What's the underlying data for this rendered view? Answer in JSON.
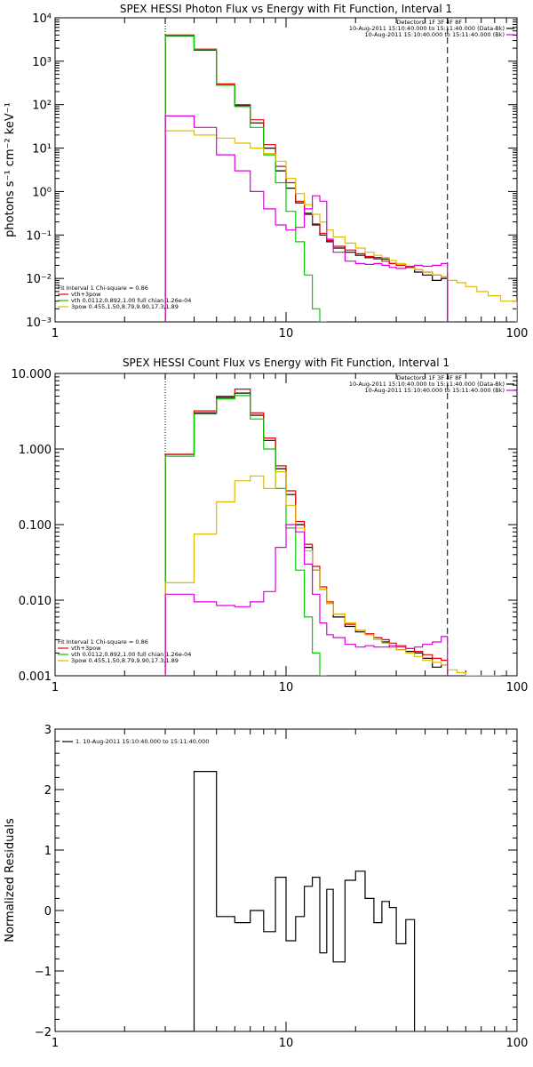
{
  "chart_data": [
    {
      "type": "line",
      "title": "SPEX HESSI Photon Flux vs Energy with Fit Function, Interval 1",
      "ylabel": "photons s⁻¹ cm⁻² keV⁻¹",
      "xlabel": "",
      "xscale": "log",
      "yscale": "log",
      "xlim": [
        1,
        100
      ],
      "ylim": [
        0.001,
        10000
      ],
      "x_ticks": [
        1,
        10,
        100
      ],
      "x_tick_labels": [
        "1",
        "10",
        "100"
      ],
      "y_ticks": [
        0.001,
        0.01,
        0.1,
        1,
        10,
        100,
        1000,
        10000
      ],
      "y_tick_labels": [
        "10⁻³",
        "10⁻²",
        "10⁻¹",
        "10⁰",
        "10¹",
        "10²",
        "10³",
        "10⁴"
      ],
      "vlines": [
        {
          "x": 3.0,
          "style": "dotted"
        },
        {
          "x": 50.0,
          "style": "dashed"
        }
      ],
      "legend_top": [
        "Detectors: 1F 3F 4F 8F",
        "10-Aug-2011 15:10:40.000 to 15:11:40.000 (Data-Bk)",
        "10-Aug-2011 15:10:40.000 to 15:11:40.000 (Bk)"
      ],
      "legend_bottom": [
        "Fit Interval 1   Chi-square = 0.86",
        "vth+3pow",
        "vth 0.0112,0.892,1.00  full chian 1.26e-04",
        "3pow 0.455,1.50,8.79,9.90,17.3,1.89"
      ],
      "bin_edges": [
        3.0,
        4.0,
        5.0,
        6.0,
        7.0,
        8.0,
        9.0,
        10.0,
        11.0,
        12.0,
        13.0,
        14.0,
        15.0,
        16.0,
        18.0,
        20.0,
        22.0,
        24.0,
        26.0,
        28.0,
        30.0,
        33.0,
        36.0,
        39.0,
        43.0,
        47.0,
        50.0,
        55.0,
        60.0,
        67.0,
        75.0,
        85.0,
        100.0
      ],
      "series": [
        {
          "name": "10-Aug-2011 15:10:40.000 to 15:11:40.000 (Data-Bk)",
          "color": "#000000",
          "values": [
            3800,
            1800,
            280,
            95,
            38,
            10,
            3,
            1.2,
            0.55,
            0.3,
            0.17,
            0.1,
            0.07,
            0.05,
            0.04,
            0.034,
            0.03,
            0.03,
            0.028,
            0.022,
            0.02,
            0.018,
            0.014,
            0.012,
            0.009,
            0.01
          ]
        },
        {
          "name": "vth+3pow",
          "color": "#e00000",
          "values": [
            4000,
            1900,
            300,
            100,
            45,
            12,
            3.8,
            1.6,
            0.6,
            0.32,
            0.18,
            0.11,
            0.075,
            0.055,
            0.045,
            0.037,
            0.032,
            0.028,
            0.025,
            0.022,
            0.02,
            0.018,
            0.016,
            0.014,
            0.012,
            0.011
          ]
        },
        {
          "name": "vth 0.0112,0.892,1.00  full chian 1.26e-04",
          "color": "#00cc00",
          "values": [
            3900,
            1850,
            280,
            90,
            30,
            7,
            1.6,
            0.35,
            0.07,
            0.012,
            0.002,
            0.0008
          ]
        },
        {
          "name": "3pow 0.455,1.50,8.79,9.90,17.3,1.89",
          "color": "#ddbb00",
          "values": [
            25,
            20,
            17,
            13,
            10,
            7.5,
            5,
            2,
            0.9,
            0.5,
            0.3,
            0.2,
            0.13,
            0.09,
            0.065,
            0.05,
            0.04,
            0.034,
            0.03,
            0.026,
            0.022,
            0.019,
            0.016,
            0.014,
            0.012,
            0.011,
            0.009,
            0.008,
            0.0065,
            0.005,
            0.004,
            0.003
          ]
        },
        {
          "name": "10-Aug-2011 15:10:40.000 to 15:11:40.000 (Bk)",
          "color": "#dd00dd",
          "values": [
            55,
            30,
            7,
            3,
            1,
            0.4,
            0.17,
            0.13,
            0.15,
            0.4,
            0.8,
            0.6,
            0.08,
            0.04,
            0.025,
            0.022,
            0.021,
            0.022,
            0.02,
            0.018,
            0.017,
            0.019,
            0.02,
            0.019,
            0.02,
            0.022
          ]
        }
      ]
    },
    {
      "type": "line",
      "title": "SPEX HESSI Count Flux vs Energy with Fit Function, Interval 1",
      "ylabel": "",
      "xlabel": "",
      "xscale": "log",
      "yscale": "log",
      "xlim": [
        1,
        100
      ],
      "ylim": [
        0.001,
        10
      ],
      "x_ticks": [
        1,
        10,
        100
      ],
      "x_tick_labels": [
        "1",
        "10",
        "100"
      ],
      "y_ticks": [
        0.001,
        0.01,
        0.1,
        1,
        10
      ],
      "y_tick_labels": [
        "0.001",
        "0.010",
        "0.100",
        "1.000",
        "10.000"
      ],
      "vlines": [
        {
          "x": 3.0,
          "style": "dotted"
        },
        {
          "x": 50.0,
          "style": "dashed"
        }
      ],
      "legend_top": [
        "Detectors: 1F 3F 4F 8F",
        "10-Aug-2011 15:10:40.000 to 15:11:40.000 (Data-Bk)",
        "10-Aug-2011 15:10:40.000 to 15:11:40.000 (Bk)"
      ],
      "legend_bottom": [
        "Fit Interval 1   Chi-square = 0.86",
        "vth+3pow",
        "vth 0.0112,0.892,1.00  full chian 1.26e-04",
        "3pow 0.455,1.50,8.79,9.90,17.3,1.89"
      ],
      "bin_edges": [
        3.0,
        4.0,
        5.0,
        6.0,
        7.0,
        8.0,
        9.0,
        10.0,
        11.0,
        12.0,
        13.0,
        14.0,
        15.0,
        16.0,
        18.0,
        20.0,
        22.0,
        24.0,
        26.0,
        28.0,
        30.0,
        33.0,
        36.0,
        39.0,
        43.0,
        47.0,
        50.0,
        55.0,
        60.0,
        67.0,
        75.0,
        85.0
      ],
      "series": [
        {
          "name": "10-Aug-2011 15:10:40.000 to 15:11:40.000 (Data-Bk)",
          "color": "#000000",
          "values": [
            0.85,
            3.0,
            4.8,
            5.5,
            2.8,
            1.3,
            0.55,
            0.25,
            0.1,
            0.05,
            0.025,
            0.014,
            0.009,
            0.006,
            0.0045,
            0.0038,
            0.0035,
            0.0032,
            0.0028,
            0.0024,
            0.0022,
            0.0021,
            0.002,
            0.0017,
            0.0013,
            0.0014
          ]
        },
        {
          "name": "vth+3pow",
          "color": "#e00000",
          "values": [
            0.85,
            3.2,
            5.0,
            6.2,
            3.0,
            1.4,
            0.6,
            0.28,
            0.11,
            0.055,
            0.028,
            0.015,
            0.0095,
            0.0065,
            0.0048,
            0.004,
            0.0036,
            0.0032,
            0.003,
            0.0027,
            0.0025,
            0.0023,
            0.0021,
            0.0019,
            0.0017,
            0.0016
          ]
        },
        {
          "name": "vth 0.0112,0.892,1.00  full chian 1.26e-04",
          "color": "#00cc00",
          "values": [
            0.8,
            2.9,
            4.6,
            5.1,
            2.5,
            1.0,
            0.3,
            0.09,
            0.025,
            0.006,
            0.002,
            0.001
          ]
        },
        {
          "name": "3pow 0.455,1.50,8.79,9.90,17.3,1.89",
          "color": "#ddbb00",
          "values": [
            0.017,
            0.075,
            0.2,
            0.38,
            0.44,
            0.3,
            0.5,
            0.18,
            0.09,
            0.045,
            0.025,
            0.014,
            0.009,
            0.0065,
            0.005,
            0.004,
            0.0035,
            0.003,
            0.0027,
            0.0024,
            0.0022,
            0.002,
            0.0018,
            0.0016,
            0.0015,
            0.0014,
            0.0012,
            0.0011,
            0.001,
            0.0009,
            0.0008
          ]
        },
        {
          "name": "10-Aug-2011 15:10:40.000 to 15:11:40.000 (Bk)",
          "color": "#dd00dd",
          "values": [
            0.012,
            0.0095,
            0.0085,
            0.0082,
            0.0095,
            0.013,
            0.05,
            0.1,
            0.08,
            0.03,
            0.012,
            0.005,
            0.0035,
            0.0032,
            0.0026,
            0.0024,
            0.0025,
            0.0024,
            0.0024,
            0.0025,
            0.0024,
            0.0023,
            0.0024,
            0.0026,
            0.0028,
            0.0033
          ]
        }
      ]
    },
    {
      "type": "line",
      "title": "",
      "ylabel": "Normalized Residuals",
      "xlabel": "",
      "xscale": "log",
      "yscale": "linear",
      "xlim": [
        1,
        100
      ],
      "ylim": [
        -2,
        3
      ],
      "x_ticks": [
        1,
        10,
        100
      ],
      "x_tick_labels": [
        "1",
        "10",
        "100"
      ],
      "y_ticks": [
        -2,
        -1,
        0,
        1,
        2,
        3
      ],
      "y_tick_labels": [
        "−2",
        "−1",
        "0",
        "1",
        "2",
        "3"
      ],
      "legend_top": [
        "1. 10-Aug-2011 15:10:40.000 to 15:11:40.000"
      ],
      "bin_edges": [
        3.0,
        4.0,
        5.0,
        6.0,
        7.0,
        8.0,
        9.0,
        10.0,
        11.0,
        12.0,
        13.0,
        14.0,
        15.0,
        16.0,
        18.0,
        20.0,
        22.0,
        24.0,
        26.0,
        28.0,
        30.0,
        33.0,
        36.0,
        39.0,
        43.0,
        47.0,
        50.0
      ],
      "series": [
        {
          "name": "1. 10-Aug-2011 15:10:40.000 to 15:11:40.000",
          "color": "#000000",
          "values": [
            -2.0,
            2.3,
            -0.1,
            -0.2,
            0.0,
            -0.35,
            0.55,
            -0.5,
            -0.1,
            0.4,
            0.55,
            -0.7,
            0.35,
            -0.85,
            0.5,
            0.65,
            0.2,
            -0.2,
            0.15,
            0.05,
            -0.55,
            -0.15
          ]
        }
      ]
    }
  ]
}
